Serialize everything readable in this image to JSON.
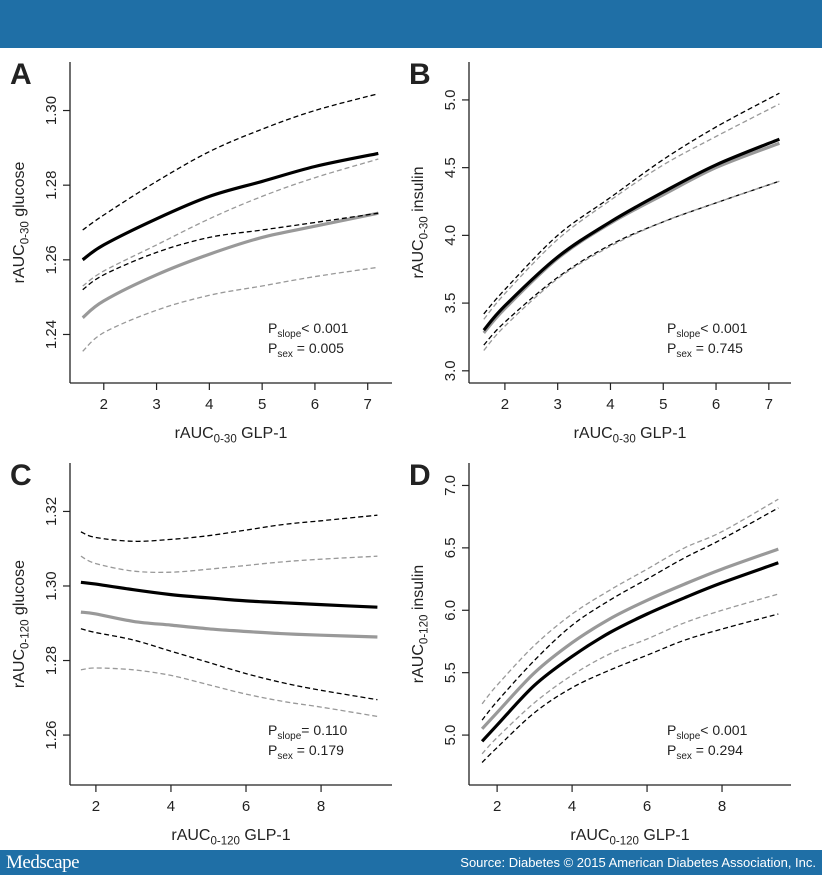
{
  "footer": {
    "logo": "Medscape",
    "source": "Source: Diabetes © 2015 American Diabetes Association, Inc."
  },
  "colors": {
    "banner": "#1f6fa6",
    "black_series": "#000000",
    "gray_series": "#999999"
  },
  "chart_data": [
    {
      "panel": "A",
      "type": "line",
      "xlabel": {
        "main": "rAUC",
        "sub": "0-30",
        "rest": " GLP-1"
      },
      "ylabel": {
        "main": "rAUC",
        "sub": "0-30",
        "rest": " glucose"
      },
      "xlim": [
        1.36,
        7.46
      ],
      "ylim": [
        1.227,
        1.313
      ],
      "xticks": [
        2,
        3,
        4,
        5,
        6,
        7
      ],
      "xtick_labels": [
        "2",
        "3",
        "4",
        "5",
        "6",
        "7"
      ],
      "yticks": [
        1.24,
        1.26,
        1.28,
        1.3
      ],
      "ytick_labels": [
        "1.24",
        "1.26",
        "1.28",
        "1.30"
      ],
      "annotation": [
        {
          "sub": "slope",
          "text": "< 0.001"
        },
        {
          "sub": "sex",
          "text": "  = 0.005"
        }
      ],
      "x": [
        1.6,
        2,
        3,
        4,
        5,
        6,
        7.2
      ],
      "series": [
        {
          "color": "black",
          "style": "solid",
          "values": [
            1.26,
            1.264,
            1.271,
            1.277,
            1.281,
            1.285,
            1.2885
          ]
        },
        {
          "color": "gray",
          "style": "solid",
          "values": [
            1.2445,
            1.249,
            1.256,
            1.2615,
            1.266,
            1.269,
            1.2725
          ]
        },
        {
          "color": "black",
          "style": "dashed",
          "values": [
            1.268,
            1.272,
            1.281,
            1.289,
            1.295,
            1.3,
            1.3045
          ]
        },
        {
          "color": "black",
          "style": "dashed",
          "values": [
            1.252,
            1.256,
            1.262,
            1.266,
            1.268,
            1.27,
            1.2725
          ]
        },
        {
          "color": "gray",
          "style": "dashed",
          "values": [
            1.253,
            1.257,
            1.264,
            1.271,
            1.277,
            1.282,
            1.287
          ]
        },
        {
          "color": "gray",
          "style": "dashed",
          "values": [
            1.2355,
            1.2405,
            1.2465,
            1.2505,
            1.253,
            1.2555,
            1.258
          ]
        }
      ]
    },
    {
      "panel": "B",
      "type": "line",
      "xlabel": {
        "main": "rAUC",
        "sub": "0-30",
        "rest": " GLP-1"
      },
      "ylabel": {
        "main": "rAUC",
        "sub": "0-30",
        "rest": " insulin"
      },
      "xlim": [
        1.32,
        7.42
      ],
      "ylim": [
        2.91,
        5.28
      ],
      "xticks": [
        2,
        3,
        4,
        5,
        6,
        7
      ],
      "xtick_labels": [
        "2",
        "3",
        "4",
        "5",
        "6",
        "7"
      ],
      "yticks": [
        3.0,
        3.5,
        4.0,
        4.5,
        5.0
      ],
      "ytick_labels": [
        "3.0",
        "3.5",
        "4.0",
        "4.5",
        "5.0"
      ],
      "annotation": [
        {
          "sub": "slope",
          "text": "< 0.001"
        },
        {
          "sub": "sex",
          "text": "  = 0.745"
        }
      ],
      "x": [
        1.6,
        2,
        3,
        4,
        5,
        6,
        7.2
      ],
      "series": [
        {
          "color": "gray",
          "style": "solid",
          "values": [
            3.28,
            3.46,
            3.83,
            4.09,
            4.3,
            4.5,
            4.68
          ]
        },
        {
          "color": "black",
          "style": "solid",
          "values": [
            3.3,
            3.48,
            3.84,
            4.1,
            4.32,
            4.52,
            4.71
          ]
        },
        {
          "color": "black",
          "style": "dashed",
          "values": [
            3.42,
            3.6,
            4.0,
            4.28,
            4.56,
            4.8,
            5.05
          ]
        },
        {
          "color": "gray",
          "style": "dashed",
          "values": [
            3.38,
            3.57,
            3.97,
            4.26,
            4.52,
            4.73,
            4.97
          ]
        },
        {
          "color": "black",
          "style": "dashed",
          "values": [
            3.19,
            3.36,
            3.69,
            3.93,
            4.1,
            4.24,
            4.4
          ]
        },
        {
          "color": "gray",
          "style": "dashed",
          "values": [
            3.15,
            3.33,
            3.68,
            3.92,
            4.1,
            4.24,
            4.4
          ]
        }
      ]
    },
    {
      "panel": "C",
      "type": "line",
      "xlabel": {
        "main": "rAUC",
        "sub": "0-120",
        "rest": " GLP-1"
      },
      "ylabel": {
        "main": "rAUC",
        "sub": "0-120",
        "rest": " glucose"
      },
      "xlim": [
        1.31,
        9.89
      ],
      "ylim": [
        1.2466,
        1.333
      ],
      "xticks": [
        2,
        4,
        6,
        8
      ],
      "xtick_labels": [
        "2",
        "4",
        "6",
        "8"
      ],
      "yticks": [
        1.26,
        1.28,
        1.3,
        1.32
      ],
      "ytick_labels": [
        "1.26",
        "1.28",
        "1.30",
        "1.32"
      ],
      "annotation": [
        {
          "sub": "slope",
          "text": "= 0.110"
        },
        {
          "sub": "sex",
          "text": "  = 0.179"
        }
      ],
      "x": [
        1.6,
        2,
        3,
        4,
        5,
        6,
        7,
        8,
        9.5
      ],
      "series": [
        {
          "color": "black",
          "style": "solid",
          "values": [
            1.301,
            1.3005,
            1.299,
            1.2977,
            1.2968,
            1.296,
            1.2955,
            1.295,
            1.2943
          ]
        },
        {
          "color": "gray",
          "style": "solid",
          "values": [
            1.293,
            1.2925,
            1.2905,
            1.2895,
            1.2885,
            1.2878,
            1.2872,
            1.2868,
            1.2863
          ]
        },
        {
          "color": "black",
          "style": "dashed",
          "values": [
            1.3145,
            1.313,
            1.312,
            1.3125,
            1.3135,
            1.315,
            1.3165,
            1.3175,
            1.319
          ]
        },
        {
          "color": "gray",
          "style": "dashed",
          "values": [
            1.308,
            1.306,
            1.304,
            1.3037,
            1.3045,
            1.3055,
            1.3065,
            1.3072,
            1.308
          ]
        },
        {
          "color": "black",
          "style": "dashed",
          "values": [
            1.2885,
            1.2875,
            1.2855,
            1.2825,
            1.2795,
            1.2765,
            1.274,
            1.272,
            1.2695
          ]
        },
        {
          "color": "gray",
          "style": "dashed",
          "values": [
            1.2775,
            1.278,
            1.2775,
            1.276,
            1.2735,
            1.271,
            1.269,
            1.2675,
            1.265
          ]
        }
      ]
    },
    {
      "panel": "D",
      "type": "line",
      "xlabel": {
        "main": "rAUC",
        "sub": "0-120",
        "rest": " GLP-1"
      },
      "ylabel": {
        "main": "rAUC",
        "sub": "0-120",
        "rest": " insulin"
      },
      "xlim": [
        1.25,
        9.84
      ],
      "ylim": [
        4.6,
        7.18
      ],
      "xticks": [
        2,
        4,
        6,
        8
      ],
      "xtick_labels": [
        "2",
        "4",
        "6",
        "8"
      ],
      "yticks": [
        5.0,
        5.5,
        6.0,
        6.5,
        7.0
      ],
      "ytick_labels": [
        "5.0",
        "5.5",
        "6.0",
        "6.5",
        "7.0"
      ],
      "annotation": [
        {
          "sub": "slope",
          "text": "< 0.001"
        },
        {
          "sub": "sex",
          "text": "  = 0.294"
        }
      ],
      "x": [
        1.6,
        2,
        3,
        4,
        5,
        6,
        7,
        8,
        9.5
      ],
      "series": [
        {
          "color": "black",
          "style": "solid",
          "values": [
            4.95,
            5.08,
            5.4,
            5.63,
            5.82,
            5.97,
            6.1,
            6.22,
            6.38
          ]
        },
        {
          "color": "gray",
          "style": "solid",
          "values": [
            5.05,
            5.18,
            5.5,
            5.74,
            5.93,
            6.08,
            6.21,
            6.33,
            6.49
          ]
        },
        {
          "color": "black",
          "style": "dashed",
          "values": [
            5.12,
            5.27,
            5.6,
            5.88,
            6.08,
            6.25,
            6.42,
            6.57,
            6.82
          ]
        },
        {
          "color": "gray",
          "style": "dashed",
          "values": [
            5.25,
            5.4,
            5.72,
            5.97,
            6.16,
            6.33,
            6.5,
            6.63,
            6.89
          ]
        },
        {
          "color": "gray",
          "style": "dashed",
          "values": [
            4.85,
            4.98,
            5.26,
            5.48,
            5.65,
            5.77,
            5.9,
            6.0,
            6.13
          ]
        },
        {
          "color": "black",
          "style": "dashed",
          "values": [
            4.78,
            4.9,
            5.18,
            5.38,
            5.52,
            5.64,
            5.76,
            5.85,
            5.97
          ]
        }
      ]
    }
  ]
}
